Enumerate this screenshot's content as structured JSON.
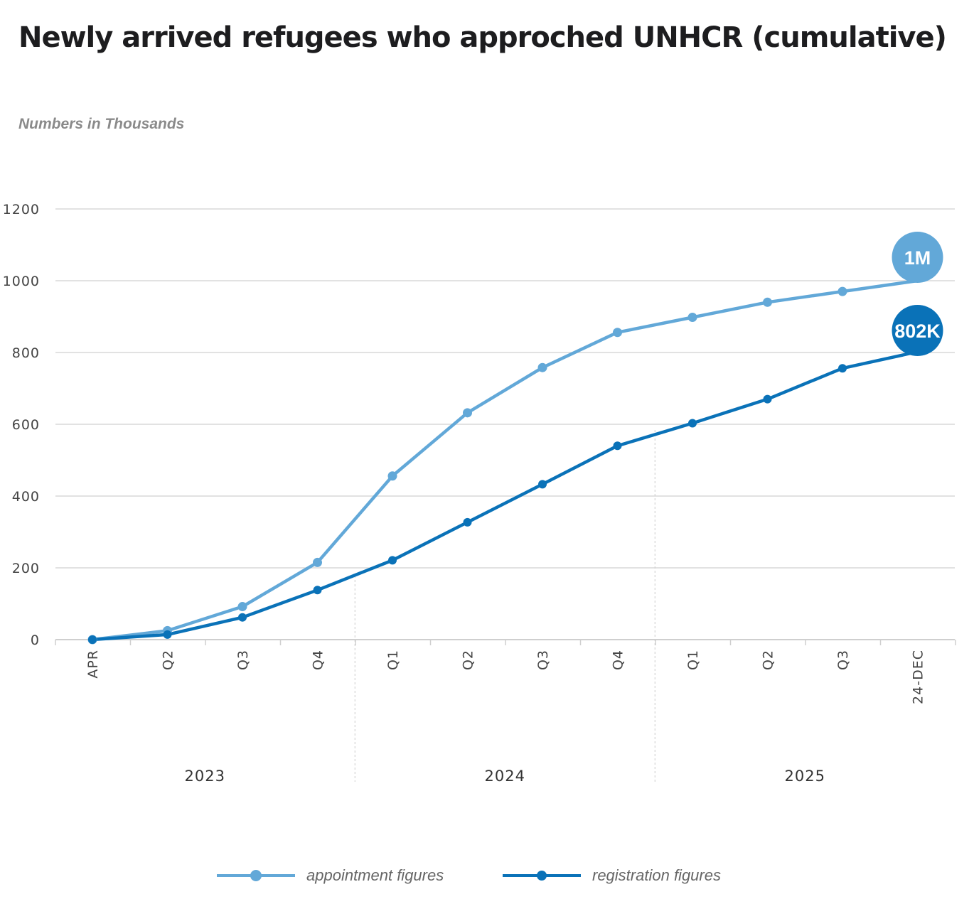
{
  "chart_data": {
    "type": "line",
    "title": "Newly arrived refugees who approched UNHCR (cumulative)",
    "ylabel": "Numbers in  Thousands",
    "xlabel": "",
    "ylim": [
      0,
      1200
    ],
    "yticks": [
      0,
      200,
      400,
      600,
      800,
      1000,
      1200
    ],
    "categories": [
      "APR",
      "Q2",
      "Q3",
      "Q4",
      "Q1",
      "Q2",
      "Q3",
      "Q4",
      "Q1",
      "Q2",
      "Q3",
      "24-DEC"
    ],
    "year_groups": [
      {
        "label": "2023",
        "start": 0,
        "end": 3
      },
      {
        "label": "2024",
        "start": 4,
        "end": 7
      },
      {
        "label": "2025",
        "start": 8,
        "end": 11
      }
    ],
    "series": [
      {
        "name": "appointment figures",
        "color": "#62a8d8",
        "values": [
          0,
          25,
          92,
          215,
          456,
          632,
          758,
          856,
          898,
          940,
          970,
          1000
        ],
        "end_label": "1M"
      },
      {
        "name": "registration figures",
        "color": "#0a72b8",
        "values": [
          0,
          14,
          62,
          138,
          221,
          327,
          433,
          540,
          603,
          670,
          756,
          802
        ],
        "end_label": "802K"
      }
    ],
    "grid": true,
    "legend_position": "bottom"
  }
}
